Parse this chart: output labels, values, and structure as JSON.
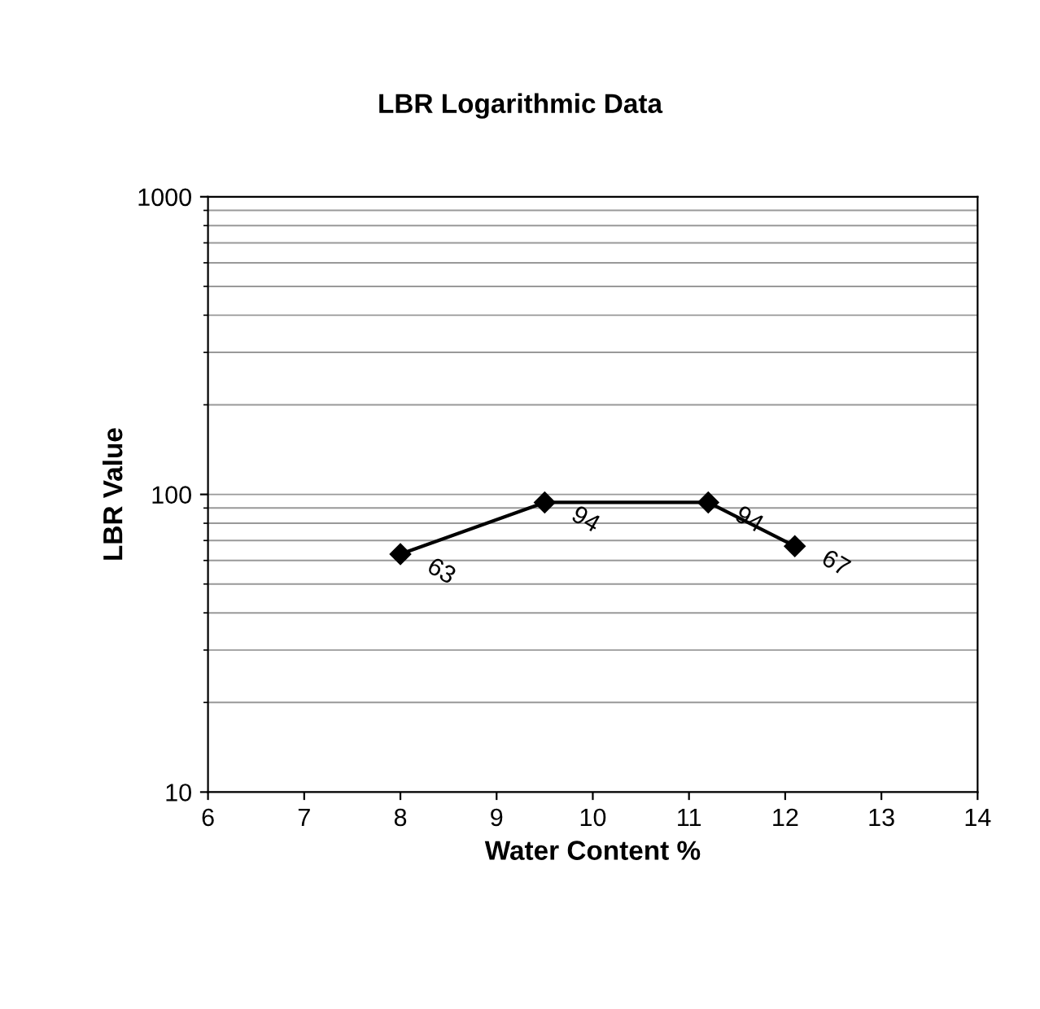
{
  "chart_data": {
    "type": "line",
    "title": "LBR Logarithmic Data",
    "xlabel": "Water Content %",
    "ylabel": "LBR Value",
    "x": [
      8,
      9.5,
      11.2,
      12.1
    ],
    "series": [
      {
        "color": "#000000",
        "values": [
          63,
          94,
          94,
          67
        ]
      }
    ],
    "data_labels": true,
    "log": "y",
    "xlim": [
      6,
      14
    ],
    "xticks": [
      6,
      7,
      8,
      9,
      10,
      11,
      12,
      13,
      14
    ],
    "ylim": [
      10,
      1000
    ],
    "yticks": [
      10,
      100,
      1000
    ],
    "grid": "y",
    "legend": false,
    "marker": "diamond",
    "line_style": "solid"
  }
}
